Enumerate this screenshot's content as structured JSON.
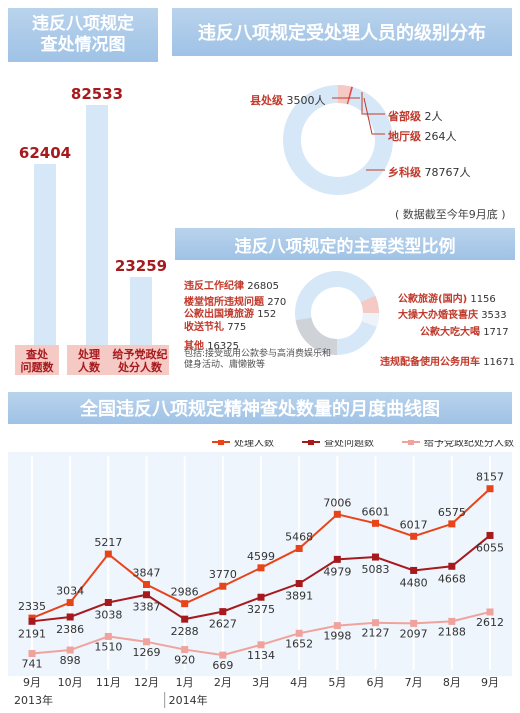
{
  "titles": {
    "overview": "违反八项规定\n查处情况图",
    "level_dist": "违反八项规定受处理人员的级别分布",
    "types": "违反八项规定的主要类型比例",
    "monthly": "全国违反八项规定精神查处数量的月度曲线图"
  },
  "bars": [
    {
      "label": "查处\n问题数",
      "value": "62404",
      "num": 62404
    },
    {
      "label": "处理\n人数",
      "value": "82533",
      "num": 82533
    },
    {
      "label": "给予党政纪\n处分人数",
      "value": "23259",
      "num": 23259
    }
  ],
  "levels": [
    {
      "name": "县处级",
      "value": "3500人",
      "num": 3500
    },
    {
      "name": "省部级",
      "value": "2人",
      "num": 2
    },
    {
      "name": "地厅级",
      "value": "264人",
      "num": 264
    },
    {
      "name": "乡科级",
      "value": "78767人",
      "num": 78767
    }
  ],
  "level_note": "( 数据截至今年9月底 )",
  "types_left": [
    {
      "name": "违反工作纪律",
      "value": "26805"
    },
    {
      "name": "楼堂馆所违规问题",
      "value": "270"
    },
    {
      "name": "公款出国境旅游",
      "value": "152"
    },
    {
      "name": "收送节礼",
      "value": "775"
    },
    {
      "name": "其他",
      "value": "16325"
    }
  ],
  "types_right": [
    {
      "name": "公款旅游(国内)",
      "value": "1156"
    },
    {
      "name": "大操大办婚丧喜庆",
      "value": "3533"
    },
    {
      "name": "公款大吃大喝",
      "value": "1717"
    },
    {
      "name": "违规配备使用公务用车",
      "value": "11671"
    }
  ],
  "other_note": "包括:接受或用公款参与高消费娱乐和健身活动、庸懒散等",
  "chart_data": {
    "type": "line",
    "categories": [
      "9月",
      "10月",
      "11月",
      "12月",
      "1月",
      "2月",
      "3月",
      "4月",
      "5月",
      "6月",
      "7月",
      "8月",
      "9月"
    ],
    "year_labels": [
      "2013年",
      "2014年"
    ],
    "series": [
      {
        "name": "处理人数",
        "color": "#e8441a",
        "values": [
          2335,
          3034,
          5217,
          3847,
          2986,
          3770,
          4599,
          5468,
          7006,
          6601,
          6017,
          6575,
          8157
        ]
      },
      {
        "name": "查处问题数",
        "color": "#a6191c",
        "values": [
          2191,
          2386,
          3038,
          3387,
          2288,
          2627,
          3275,
          3891,
          4979,
          5083,
          4480,
          4668,
          6055
        ]
      },
      {
        "name": "给予党政纪处分人数",
        "color": "#f0a39c",
        "values": [
          741,
          898,
          1510,
          1269,
          920,
          669,
          1134,
          1652,
          1998,
          2127,
          2097,
          2188,
          2612
        ]
      }
    ]
  }
}
